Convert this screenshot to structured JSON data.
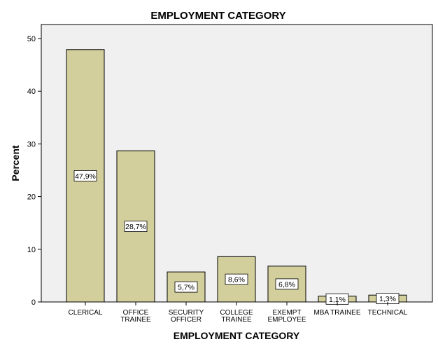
{
  "chart_data": {
    "type": "bar",
    "title": "EMPLOYMENT CATEGORY",
    "xlabel": "EMPLOYMENT CATEGORY",
    "ylabel": "Percent",
    "ylim": [
      0,
      50
    ],
    "yticks": [
      0,
      10,
      20,
      30,
      40,
      50
    ],
    "categories": [
      [
        "CLERICAL"
      ],
      [
        "OFFICE",
        "TRAINEE"
      ],
      [
        "SECURITY",
        "OFFICER"
      ],
      [
        "COLLEGE",
        "TRAINEE"
      ],
      [
        "EXEMPT",
        "EMPLOYEE"
      ],
      [
        "MBA TRAINEE"
      ],
      [
        "TECHNICAL"
      ]
    ],
    "values": [
      47.9,
      28.7,
      5.7,
      8.6,
      6.8,
      1.1,
      1.3
    ],
    "data_labels": [
      "47,9%",
      "28,7%",
      "5,7%",
      "8,6%",
      "6,8%",
      "1,1%",
      "1,3%"
    ],
    "grid": false,
    "legend": "none",
    "colors": {
      "bar_fill": "#d3cf9c",
      "bar_stroke": "#000000",
      "plot_background": "#f0f0f0"
    }
  }
}
